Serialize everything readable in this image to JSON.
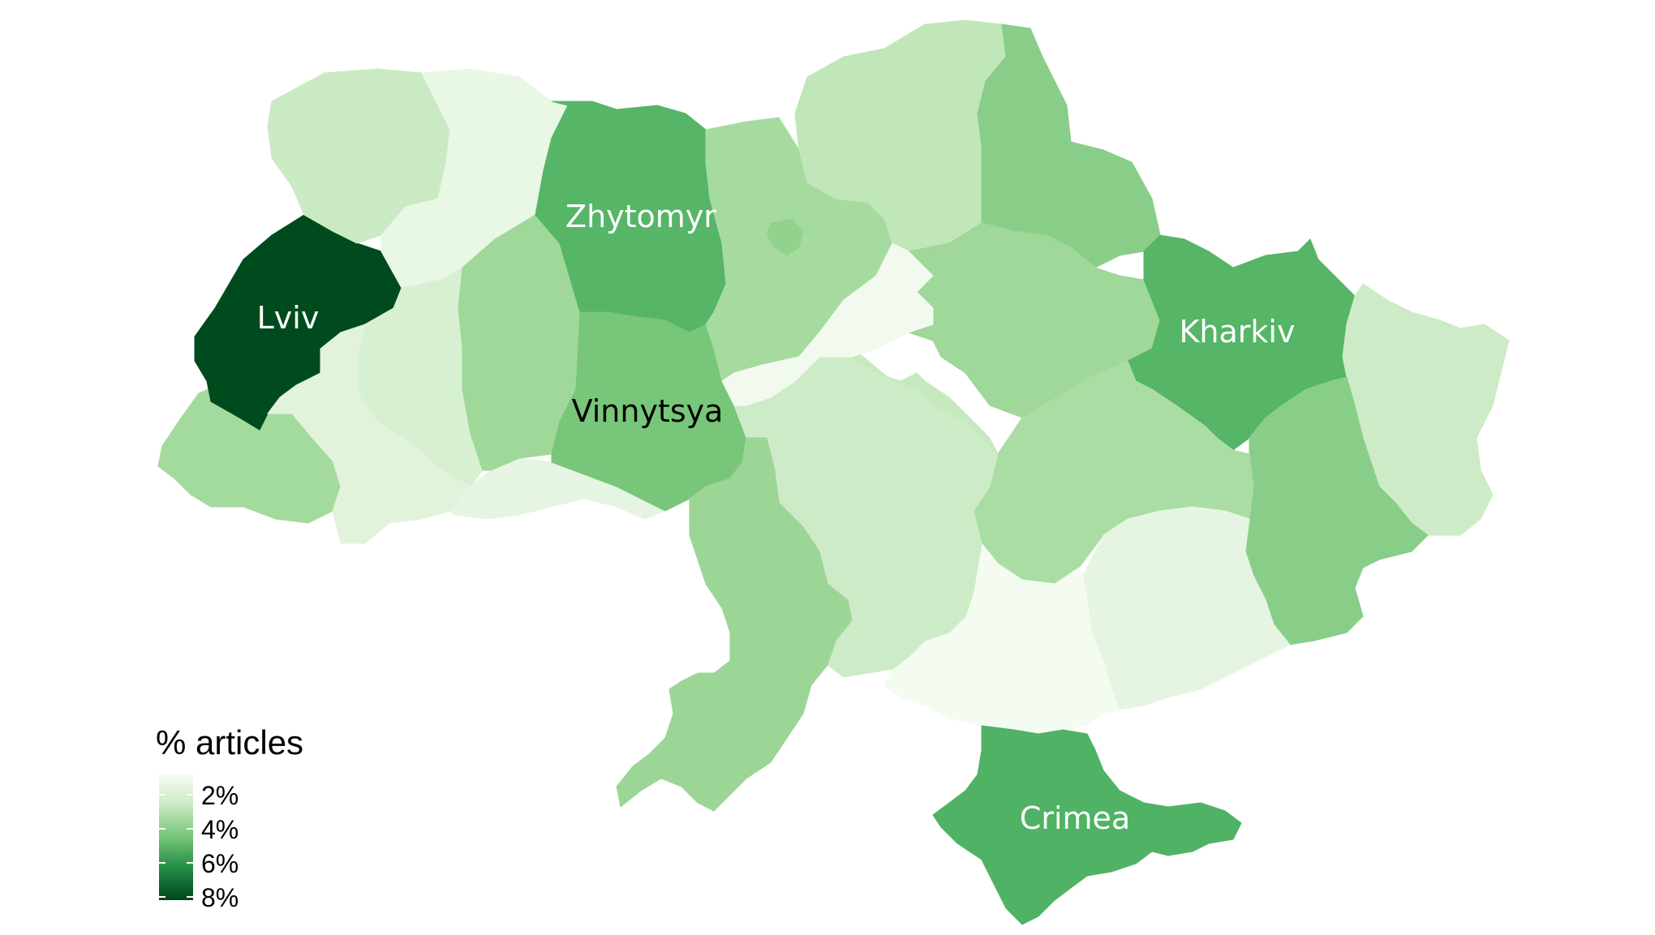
{
  "legend": {
    "title": "% articles",
    "ticks": [
      "2%",
      "4%",
      "6%",
      "8%"
    ],
    "color_low": "#f7fcf5",
    "color_high": "#00441b"
  },
  "regions": [
    {
      "id": "volyn",
      "pct": 3.5,
      "label": ""
    },
    {
      "id": "rivne",
      "pct": 2.3,
      "label": ""
    },
    {
      "id": "zhytomyr",
      "pct": 6.2,
      "label": "Zhytomyr",
      "label_color": "#ffffff"
    },
    {
      "id": "kyiv-oblast",
      "pct": 4.5,
      "label": ""
    },
    {
      "id": "kyiv-city",
      "pct": 5.0,
      "label": ""
    },
    {
      "id": "chernihiv",
      "pct": 3.8,
      "label": ""
    },
    {
      "id": "sumy",
      "pct": 5.2,
      "label": ""
    },
    {
      "id": "kharkiv",
      "pct": 6.2,
      "label": "Kharkiv",
      "label_color": "#ffffff"
    },
    {
      "id": "luhansk",
      "pct": 3.4,
      "label": ""
    },
    {
      "id": "donetsk",
      "pct": 5.2,
      "label": ""
    },
    {
      "id": "zaporizhzhia",
      "pct": 2.5,
      "label": ""
    },
    {
      "id": "dnipropetrovsk",
      "pct": 4.4,
      "label": ""
    },
    {
      "id": "poltava",
      "pct": 4.7,
      "label": ""
    },
    {
      "id": "cherkasy",
      "pct": 1.8,
      "label": ""
    },
    {
      "id": "kirovohrad",
      "pct": 3.6,
      "label": ""
    },
    {
      "id": "mykolaiv",
      "pct": 3.4,
      "label": ""
    },
    {
      "id": "kherson",
      "pct": 1.7,
      "label": ""
    },
    {
      "id": "odesa",
      "pct": 4.8,
      "label": ""
    },
    {
      "id": "vinnytsya",
      "pct": 5.6,
      "label": "Vinnytsya",
      "label_color": "#000000"
    },
    {
      "id": "khmelnytskyi",
      "pct": 4.7,
      "label": ""
    },
    {
      "id": "ternopil",
      "pct": 3.0,
      "label": ""
    },
    {
      "id": "lviv",
      "pct": 8.4,
      "label": "Lviv",
      "label_color": "#ffffff"
    },
    {
      "id": "zakarpattia",
      "pct": 4.6,
      "label": ""
    },
    {
      "id": "ivano-frankivsk",
      "pct": 2.7,
      "label": ""
    },
    {
      "id": "chernivtsi",
      "pct": 2.5,
      "label": ""
    },
    {
      "id": "crimea",
      "pct": 6.3,
      "label": "Crimea",
      "label_color": "#ffffff"
    }
  ]
}
